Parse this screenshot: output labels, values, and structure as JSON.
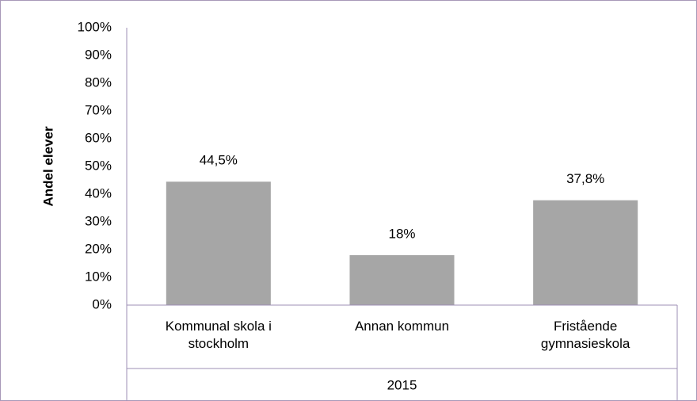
{
  "chart_data": {
    "type": "bar",
    "y_label": "Andel elever",
    "categories": [
      "Kommunal skola i stockholm",
      "Annan kommun",
      "Fristående gymnasieskola"
    ],
    "group_label": "2015",
    "values": [
      44.5,
      18,
      37.8
    ],
    "value_labels": [
      "44,5%",
      "18%",
      "37,8%"
    ],
    "color": "#a6a6a6",
    "ylim": [
      0,
      100
    ],
    "yticks": [
      {
        "value": 0,
        "label": "0%"
      },
      {
        "value": 10,
        "label": "10%"
      },
      {
        "value": 20,
        "label": "20%"
      },
      {
        "value": 30,
        "label": "30%"
      },
      {
        "value": 40,
        "label": "40%"
      },
      {
        "value": 50,
        "label": "50%"
      },
      {
        "value": 60,
        "label": "60%"
      },
      {
        "value": 70,
        "label": "70%"
      },
      {
        "value": 80,
        "label": "80%"
      },
      {
        "value": 90,
        "label": "90%"
      },
      {
        "value": 100,
        "label": "100%"
      }
    ],
    "grid": false
  }
}
